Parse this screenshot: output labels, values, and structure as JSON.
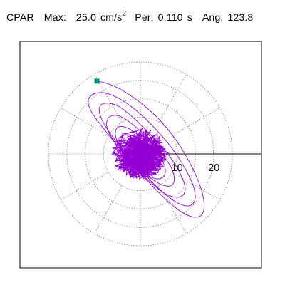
{
  "header": {
    "component": "CPAR",
    "max_label": "Max:",
    "max_value": "25.0",
    "max_unit": "cm/s",
    "max_unit_exp": "2",
    "per_label": "Per:",
    "per_value": "0.110",
    "per_unit": "s",
    "ang_label": "Ang:",
    "ang_value": "123.8"
  },
  "chart_data": {
    "type": "polar-orbit",
    "radial_unit": "cm/s²",
    "rmax": 25,
    "rings": [
      5,
      10,
      15,
      20,
      25
    ],
    "spoke_step_deg": 30,
    "tick_labels": [
      "10",
      "20"
    ],
    "tick_values": [
      10,
      20
    ],
    "grid": true,
    "trace_color": "#9400d3",
    "marker_color": "#00937a",
    "orbit_points": [
      [
        -11.8,
        19.8
      ],
      [
        -9.5,
        19.4
      ],
      [
        -6.0,
        18.0
      ],
      [
        -2.0,
        15.5
      ],
      [
        2.5,
        12.0
      ],
      [
        6.5,
        8.0
      ],
      [
        10.0,
        3.5
      ],
      [
        13.0,
        -1.5
      ],
      [
        15.5,
        -6.5
      ],
      [
        17.2,
        -11.5
      ],
      [
        17.5,
        -15.5
      ],
      [
        16.0,
        -17.5
      ],
      [
        12.5,
        -16.8
      ],
      [
        8.0,
        -13.5
      ],
      [
        3.0,
        -8.5
      ],
      [
        -2.0,
        -3.0
      ],
      [
        -6.5,
        2.5
      ],
      [
        -10.5,
        7.5
      ],
      [
        -13.5,
        11.5
      ],
      [
        -14.5,
        14.5
      ],
      [
        -13.0,
        16.5
      ],
      [
        -9.5,
        16.8
      ],
      [
        -5.0,
        14.8
      ],
      [
        0.0,
        11.0
      ],
      [
        4.5,
        6.5
      ],
      [
        8.5,
        1.8
      ],
      [
        12.0,
        -3.5
      ],
      [
        14.5,
        -8.5
      ],
      [
        15.2,
        -12.5
      ],
      [
        13.5,
        -14.5
      ],
      [
        10.0,
        -13.5
      ],
      [
        5.5,
        -10.0
      ],
      [
        1.0,
        -5.5
      ],
      [
        -3.5,
        -0.5
      ],
      [
        -7.5,
        4.5
      ],
      [
        -10.5,
        9.0
      ],
      [
        -11.5,
        12.5
      ],
      [
        -10.0,
        14.0
      ],
      [
        -6.5,
        13.5
      ],
      [
        -2.5,
        10.5
      ],
      [
        1.5,
        6.5
      ],
      [
        5.5,
        2.5
      ],
      [
        9.0,
        -2.0
      ],
      [
        11.5,
        -6.5
      ],
      [
        12.5,
        -10.0
      ],
      [
        11.0,
        -12.0
      ],
      [
        7.5,
        -11.5
      ],
      [
        3.5,
        -8.5
      ],
      [
        -0.5,
        -4.5
      ],
      [
        -4.5,
        0.0
      ],
      [
        -8.0,
        4.5
      ],
      [
        -9.5,
        8.0
      ],
      [
        -8.5,
        10.5
      ],
      [
        -5.5,
        10.5
      ],
      [
        -2.0,
        8.0
      ],
      [
        2.0,
        4.5
      ],
      [
        5.5,
        0.5
      ],
      [
        8.5,
        -3.5
      ],
      [
        9.5,
        -7.0
      ],
      [
        8.5,
        -9.0
      ],
      [
        5.5,
        -8.5
      ],
      [
        2.0,
        -6.0
      ],
      [
        -2.0,
        -2.5
      ],
      [
        -5.5,
        1.5
      ],
      [
        -7.0,
        5.0
      ],
      [
        -6.5,
        7.5
      ],
      [
        -4.0,
        7.5
      ],
      [
        -1.0,
        5.5
      ],
      [
        2.5,
        2.5
      ],
      [
        5.5,
        -1.0
      ],
      [
        7.0,
        -4.0
      ],
      [
        6.5,
        -6.5
      ],
      [
        4.0,
        -7.0
      ],
      [
        0.5,
        -5.0
      ],
      [
        -3.0,
        -2.0
      ],
      [
        -5.5,
        1.0
      ],
      [
        -6.0,
        4.0
      ],
      [
        -4.0,
        5.5
      ],
      [
        -1.0,
        4.5
      ],
      [
        2.0,
        2.0
      ],
      [
        4.5,
        -1.0
      ],
      [
        5.5,
        -3.5
      ],
      [
        4.5,
        -5.5
      ],
      [
        2.0,
        -5.0
      ],
      [
        -1.0,
        -3.0
      ],
      [
        -3.5,
        -0.5
      ],
      [
        -4.5,
        2.0
      ],
      [
        -3.0,
        3.5
      ],
      [
        -0.5,
        3.0
      ],
      [
        2.0,
        1.0
      ],
      [
        3.5,
        -1.5
      ],
      [
        3.0,
        -3.5
      ],
      [
        1.0,
        -3.5
      ],
      [
        -1.5,
        -2.0
      ],
      [
        -2.5,
        0.0
      ],
      [
        -2.0,
        1.5
      ],
      [
        0.0,
        1.5
      ],
      [
        1.5,
        0.0
      ]
    ],
    "start_marker": [
      -11.8,
      19.8
    ]
  }
}
